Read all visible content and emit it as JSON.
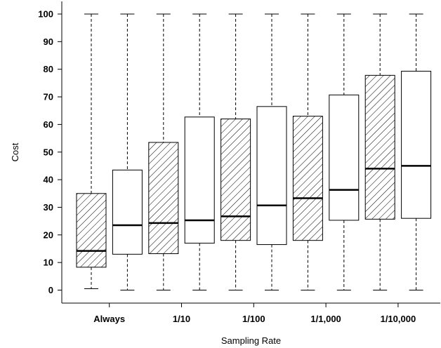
{
  "chart_data": {
    "type": "box",
    "xlabel": "Sampling Rate",
    "ylabel": "Cost",
    "ylim": [
      0,
      100
    ],
    "yticks": [
      0,
      10,
      20,
      30,
      40,
      50,
      60,
      70,
      80,
      90,
      100
    ],
    "categories": [
      "Always",
      "1/10",
      "1/100",
      "1/1,000",
      "1/10,000"
    ],
    "boxes": [
      {
        "category": "Always",
        "fill": "hatched",
        "min": 0.5,
        "q1": 8.3,
        "median": 14.2,
        "q3": 35.0,
        "max": 100
      },
      {
        "category": "Always",
        "fill": "white",
        "min": 0,
        "q1": 13.0,
        "median": 23.5,
        "q3": 43.5,
        "max": 100
      },
      {
        "category": "1/10",
        "fill": "hatched",
        "min": 0,
        "q1": 13.2,
        "median": 24.3,
        "q3": 53.5,
        "max": 100
      },
      {
        "category": "1/10",
        "fill": "white",
        "min": 0,
        "q1": 17.0,
        "median": 25.3,
        "q3": 62.7,
        "max": 100
      },
      {
        "category": "1/100",
        "fill": "hatched",
        "min": 0,
        "q1": 18.0,
        "median": 26.7,
        "q3": 62.0,
        "max": 100
      },
      {
        "category": "1/100",
        "fill": "white",
        "min": 0,
        "q1": 16.5,
        "median": 30.7,
        "q3": 66.5,
        "max": 100
      },
      {
        "category": "1/1,000",
        "fill": "hatched",
        "min": 0,
        "q1": 18.0,
        "median": 33.3,
        "q3": 63.0,
        "max": 100
      },
      {
        "category": "1/1,000",
        "fill": "white",
        "min": 0,
        "q1": 25.3,
        "median": 36.3,
        "q3": 70.7,
        "max": 100
      },
      {
        "category": "1/10,000",
        "fill": "hatched",
        "min": 0,
        "q1": 25.7,
        "median": 44.0,
        "q3": 77.8,
        "max": 100
      },
      {
        "category": "1/10,000",
        "fill": "white",
        "min": 0,
        "q1": 26.0,
        "median": 45.0,
        "q3": 79.3,
        "max": 100
      }
    ]
  }
}
